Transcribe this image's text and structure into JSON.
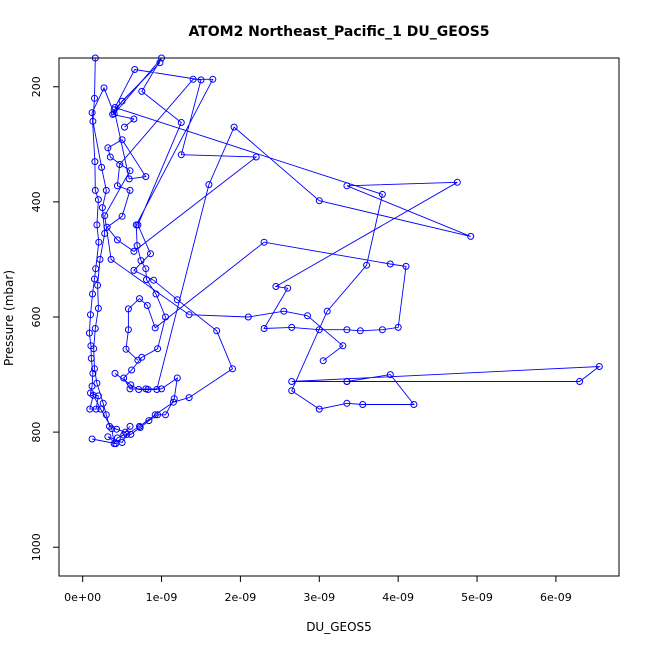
{
  "chart_data": {
    "type": "line",
    "title": "ATOM2 Northeast_Pacific_1 DU_GEOS5",
    "xlabel": "DU_GEOS5",
    "ylabel": "Pressure (mbar)",
    "xlim": [
      -3e-10,
      6.8e-09
    ],
    "ylim": [
      1050,
      150
    ],
    "y_reversed": true,
    "x_ticks": [
      {
        "value": 0,
        "label": "0e+00"
      },
      {
        "value": 1e-09,
        "label": "1e-09"
      },
      {
        "value": 2e-09,
        "label": "2e-09"
      },
      {
        "value": 3e-09,
        "label": "3e-09"
      },
      {
        "value": 4e-09,
        "label": "4e-09"
      },
      {
        "value": 5e-09,
        "label": "5e-09"
      },
      {
        "value": 6e-09,
        "label": "6e-09"
      }
    ],
    "y_ticks": [
      {
        "value": 200,
        "label": "200"
      },
      {
        "value": 400,
        "label": "400"
      },
      {
        "value": 600,
        "label": "600"
      },
      {
        "value": 800,
        "label": "800"
      },
      {
        "value": 1000,
        "label": "1000"
      }
    ],
    "grid": false,
    "marker": "open-circle",
    "series": [
      {
        "color": "#0000ff",
        "points": [
          [
            1.2e-10,
            812
          ],
          [
            4.2e-10,
            820
          ],
          [
            3.2e-10,
            808
          ],
          [
            5e-10,
            818
          ],
          [
            5.6e-10,
            804
          ],
          [
            7.2e-10,
            790
          ],
          [
            9.2e-10,
            770
          ],
          [
            1.15e-09,
            748
          ],
          [
            1.35e-09,
            740
          ],
          [
            1.9e-09,
            690
          ],
          [
            1.7e-09,
            624
          ],
          [
            1.2e-09,
            570
          ],
          [
            9e-10,
            536
          ],
          [
            6.5e-10,
            519
          ],
          [
            8.6e-10,
            490
          ],
          [
            7e-10,
            440
          ],
          [
            1.25e-09,
            262
          ],
          [
            7.5e-10,
            208
          ],
          [
            1e-09,
            150
          ],
          [
            4e-10,
            247
          ],
          [
            2.7e-10,
            202
          ],
          [
            1.2e-10,
            245
          ],
          [
            1.55e-10,
            330
          ],
          [
            1.6e-10,
            380
          ],
          [
            2e-10,
            396
          ],
          [
            1.8e-10,
            440
          ],
          [
            2.05e-10,
            470
          ],
          [
            1.65e-10,
            516
          ],
          [
            1.5e-10,
            534
          ],
          [
            1.25e-10,
            560
          ],
          [
            1e-10,
            596
          ],
          [
            8.5e-11,
            628
          ],
          [
            1.05e-10,
            650
          ],
          [
            1.1e-10,
            672
          ],
          [
            1.3e-10,
            698
          ],
          [
            1.2e-10,
            720
          ],
          [
            1e-10,
            732
          ],
          [
            2e-10,
            737
          ],
          [
            1.7e-10,
            760
          ],
          [
            9e-11,
            760
          ],
          [
            1.35e-10,
            736
          ],
          [
            2.3e-10,
            760
          ],
          [
            3.7e-10,
            794
          ],
          [
            4e-10,
            820
          ],
          [
            4.4e-10,
            810
          ],
          [
            5.2e-10,
            805
          ],
          [
            6.1e-10,
            804
          ],
          [
            7.3e-10,
            792
          ],
          [
            8.4e-10,
            780
          ],
          [
            9.5e-10,
            770
          ],
          [
            1.05e-09,
            770
          ],
          [
            1.16e-09,
            742
          ],
          [
            1.2e-09,
            706
          ],
          [
            1e-09,
            725
          ],
          [
            8e-10,
            725
          ],
          [
            6e-10,
            725
          ],
          [
            5.2e-10,
            706
          ],
          [
            6.2e-10,
            692
          ],
          [
            7.5e-10,
            670
          ],
          [
            9.5e-10,
            655
          ],
          [
            1.05e-09,
            600
          ],
          [
            9.3e-10,
            560
          ],
          [
            8.1e-10,
            535
          ],
          [
            8e-10,
            516
          ],
          [
            7.4e-10,
            502
          ],
          [
            6.9e-10,
            476
          ],
          [
            6.8e-10,
            440
          ],
          [
            1.65e-09,
            187
          ],
          [
            1.4e-09,
            187
          ],
          [
            4.7e-10,
            335
          ],
          [
            4.4e-10,
            372
          ],
          [
            6e-10,
            380
          ],
          [
            5e-10,
            425
          ],
          [
            3.1e-10,
            444
          ],
          [
            4.4e-10,
            466
          ],
          [
            6.5e-10,
            486
          ],
          [
            2.2e-09,
            322
          ],
          [
            1.25e-09,
            318
          ],
          [
            1.5e-09,
            188
          ],
          [
            6.6e-10,
            170
          ],
          [
            4.1e-10,
            236
          ],
          [
            3.8e-09,
            387
          ],
          [
            3.6e-09,
            510
          ],
          [
            3.1e-09,
            590
          ],
          [
            2.65e-09,
            728
          ],
          [
            3e-09,
            760
          ],
          [
            3.35e-09,
            750
          ],
          [
            3.55e-09,
            752
          ],
          [
            4.2e-09,
            752
          ],
          [
            3.9e-09,
            700
          ],
          [
            3.35e-09,
            712
          ],
          [
            2.65e-09,
            712
          ],
          [
            6.55e-09,
            686
          ],
          [
            6.3e-09,
            712
          ],
          [
            3.35e-09,
            712
          ]
        ]
      },
      {
        "color": "#0000ff",
        "points": [
          [
            1.6e-10,
            150
          ],
          [
            1.5e-10,
            220
          ],
          [
            1.3e-10,
            260
          ],
          [
            2.4e-10,
            340
          ],
          [
            3e-10,
            380
          ],
          [
            2.5e-10,
            410
          ],
          [
            2.8e-10,
            455
          ],
          [
            2.2e-10,
            500
          ],
          [
            1.9e-10,
            545
          ],
          [
            2e-10,
            585
          ],
          [
            1.6e-10,
            620
          ],
          [
            1.4e-10,
            655
          ],
          [
            1.5e-10,
            690
          ],
          [
            1.8e-10,
            715
          ],
          [
            2.6e-10,
            750
          ],
          [
            3e-10,
            770
          ],
          [
            3.4e-10,
            790
          ],
          [
            4.3e-10,
            795
          ],
          [
            5.4e-10,
            800
          ],
          [
            6e-10,
            790
          ]
        ]
      },
      {
        "color": "#0000ff",
        "points": [
          [
            4.1e-10,
            698
          ],
          [
            6.1e-10,
            718
          ],
          [
            7.1e-10,
            726
          ],
          [
            8.3e-10,
            726
          ],
          [
            9.4e-10,
            726
          ],
          [
            1.6e-09,
            370
          ],
          [
            1.92e-09,
            270
          ],
          [
            3e-09,
            398
          ],
          [
            4.92e-09,
            460
          ],
          [
            3.35e-09,
            372
          ],
          [
            4.75e-09,
            366
          ],
          [
            2.45e-09,
            547
          ],
          [
            2.6e-09,
            550
          ],
          [
            2.3e-09,
            620
          ],
          [
            2.65e-09,
            618
          ],
          [
            3e-09,
            622
          ],
          [
            3.35e-09,
            622
          ],
          [
            3.52e-09,
            624
          ],
          [
            3.8e-09,
            622
          ],
          [
            4e-09,
            618
          ],
          [
            4.1e-09,
            512
          ],
          [
            3.9e-09,
            508
          ],
          [
            2.3e-09,
            470
          ],
          [
            9.2e-10,
            619
          ],
          [
            8.2e-10,
            580
          ],
          [
            7.2e-10,
            568
          ],
          [
            5.8e-10,
            586
          ],
          [
            5.8e-10,
            622
          ],
          [
            5.5e-10,
            656
          ],
          [
            7e-10,
            675
          ]
        ]
      },
      {
        "color": "#0000ff",
        "points": [
          [
            3.05e-09,
            676
          ],
          [
            3.3e-09,
            650
          ],
          [
            2.85e-09,
            598
          ],
          [
            2.55e-09,
            590
          ],
          [
            2.1e-09,
            600
          ],
          [
            1.35e-09,
            596
          ],
          [
            3.6e-10,
            500
          ],
          [
            2.8e-10,
            424
          ],
          [
            6e-10,
            346
          ],
          [
            3.5e-10,
            322
          ],
          [
            3.2e-10,
            306
          ],
          [
            5e-10,
            292
          ],
          [
            8e-10,
            356
          ],
          [
            5.9e-10,
            360
          ],
          [
            4e-10,
            240
          ],
          [
            9.8e-10,
            158
          ],
          [
            5e-10,
            225
          ],
          [
            3.8e-10,
            248
          ],
          [
            6.5e-10,
            256
          ],
          [
            5.3e-10,
            270
          ]
        ]
      }
    ]
  }
}
